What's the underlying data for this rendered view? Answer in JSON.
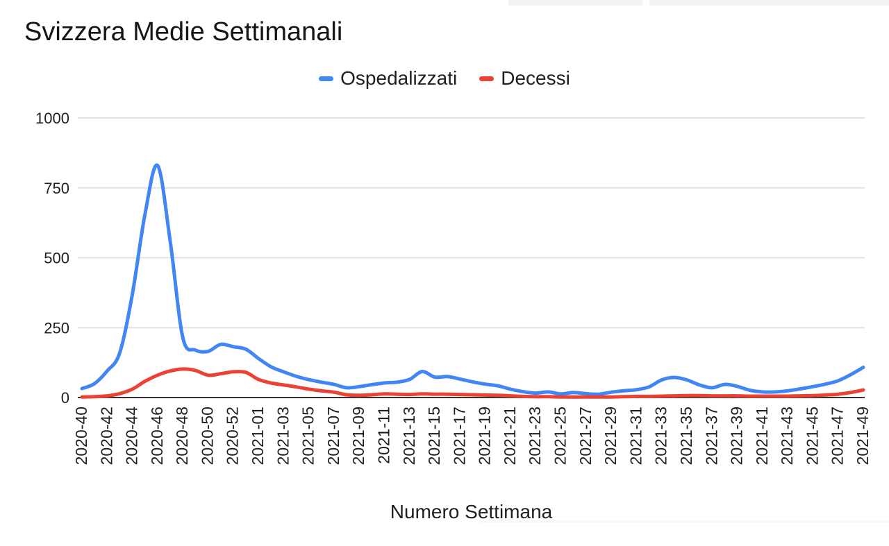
{
  "page": {
    "background": "#ffffff"
  },
  "chart_data": {
    "type": "line",
    "title": "Svizzera Medie Settimanali",
    "xlabel": "Numero Settimana",
    "ylabel": "",
    "ylim": [
      0,
      1000
    ],
    "yticks": [
      0,
      250,
      500,
      750,
      1000
    ],
    "grid": "horizontal",
    "legend_position": "top-center",
    "gridline_color": "#e3e3e3",
    "axis_color": "#333333",
    "tick_label_color": "#1f1f1f",
    "x_tick_step": 2,
    "x_tick_labels_visible": [
      "2020-40",
      "2020-42",
      "2020-44",
      "2020-46",
      "2020-48",
      "2020-50",
      "2020-52",
      "2021-01",
      "2021-03",
      "2021-05",
      "2021-07",
      "2021-09",
      "2021-11",
      "2021-13",
      "2021-15",
      "2021-17",
      "2021-19",
      "2021-21",
      "2021-23",
      "2021-25",
      "2021-27",
      "2021-29",
      "2021-31",
      "2021-33",
      "2021-35",
      "2021-37",
      "2021-39",
      "2021-41",
      "2021-43",
      "2021-45",
      "2021-47",
      "2021-49"
    ],
    "x": [
      "2020-40",
      "2020-41",
      "2020-42",
      "2020-43",
      "2020-44",
      "2020-45",
      "2020-46",
      "2020-47",
      "2020-48",
      "2020-49",
      "2020-50",
      "2020-51",
      "2020-52",
      "2020-53",
      "2021-01",
      "2021-02",
      "2021-03",
      "2021-04",
      "2021-05",
      "2021-06",
      "2021-07",
      "2021-08",
      "2021-09",
      "2021-10",
      "2021-11",
      "2021-12",
      "2021-13",
      "2021-14",
      "2021-15",
      "2021-16",
      "2021-17",
      "2021-18",
      "2021-19",
      "2021-20",
      "2021-21",
      "2021-22",
      "2021-23",
      "2021-24",
      "2021-25",
      "2021-26",
      "2021-27",
      "2021-28",
      "2021-29",
      "2021-30",
      "2021-31",
      "2021-32",
      "2021-33",
      "2021-34",
      "2021-35",
      "2021-36",
      "2021-37",
      "2021-38",
      "2021-39",
      "2021-40",
      "2021-41",
      "2021-42",
      "2021-43",
      "2021-44",
      "2021-45",
      "2021-46",
      "2021-47",
      "2021-48",
      "2021-49"
    ],
    "series": [
      {
        "name": "Ospedalizzati",
        "color": "#4285F4",
        "values": [
          32,
          50,
          95,
          160,
          370,
          655,
          830,
          560,
          215,
          170,
          165,
          190,
          182,
          173,
          140,
          110,
          92,
          76,
          64,
          55,
          47,
          35,
          39,
          46,
          52,
          55,
          65,
          93,
          73,
          75,
          66,
          56,
          48,
          42,
          30,
          21,
          16,
          20,
          13,
          18,
          14,
          12,
          19,
          24,
          28,
          38,
          63,
          72,
          63,
          45,
          35,
          47,
          40,
          26,
          20,
          20,
          24,
          31,
          39,
          48,
          60,
          82,
          108
        ]
      },
      {
        "name": "Decessi",
        "color": "#EA4335",
        "values": [
          2,
          3,
          6,
          14,
          30,
          58,
          80,
          95,
          102,
          97,
          80,
          85,
          92,
          90,
          65,
          52,
          45,
          38,
          30,
          24,
          19,
          10,
          8,
          10,
          13,
          12,
          11,
          13,
          12,
          12,
          11,
          10,
          9,
          8,
          6,
          4,
          3,
          3,
          2,
          2,
          2,
          2,
          2,
          3,
          4,
          4,
          5,
          6,
          7,
          7,
          6,
          6,
          6,
          5,
          5,
          5,
          5,
          6,
          7,
          9,
          12,
          18,
          27
        ]
      }
    ]
  }
}
